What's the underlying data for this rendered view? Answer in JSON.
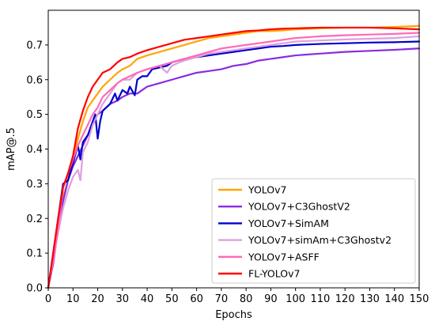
{
  "chart_data": {
    "type": "line",
    "title": "",
    "xlabel": "Epochs",
    "ylabel": "mAP@.5",
    "xlim": [
      0,
      150
    ],
    "ylim": [
      0,
      0.8
    ],
    "xticks": [
      0,
      10,
      20,
      30,
      40,
      50,
      60,
      70,
      80,
      90,
      100,
      110,
      120,
      130,
      140,
      150
    ],
    "yticks": [
      0.0,
      0.1,
      0.2,
      0.3,
      0.4,
      0.5,
      0.6,
      0.7
    ],
    "ytick_labels": [
      "0.0",
      "0.1",
      "0.2",
      "0.3",
      "0.4",
      "0.5",
      "0.6",
      "0.7"
    ],
    "grid": false,
    "legend_position": "lower-right",
    "series": [
      {
        "name": "YOLOv7",
        "color": "#FFA500",
        "x": [
          0,
          2,
          4,
          6,
          8,
          10,
          12,
          14,
          16,
          18,
          20,
          22,
          25,
          28,
          30,
          33,
          36,
          40,
          45,
          50,
          55,
          60,
          65,
          70,
          75,
          80,
          85,
          90,
          95,
          100,
          110,
          120,
          130,
          140,
          150
        ],
        "y": [
          0.0,
          0.09,
          0.18,
          0.26,
          0.31,
          0.37,
          0.43,
          0.48,
          0.52,
          0.54,
          0.56,
          0.58,
          0.6,
          0.62,
          0.63,
          0.64,
          0.66,
          0.67,
          0.68,
          0.69,
          0.7,
          0.71,
          0.72,
          0.725,
          0.73,
          0.735,
          0.74,
          0.74,
          0.742,
          0.745,
          0.748,
          0.75,
          0.75,
          0.752,
          0.755
        ]
      },
      {
        "name": "YOLOv7+C3GhostV2",
        "color": "#8A2BE2",
        "x": [
          0,
          2,
          4,
          6,
          8,
          10,
          12,
          14,
          16,
          18,
          20,
          22,
          25,
          28,
          30,
          33,
          36,
          40,
          45,
          50,
          55,
          60,
          65,
          70,
          75,
          80,
          85,
          90,
          95,
          100,
          110,
          120,
          130,
          140,
          150
        ],
        "y": [
          0.0,
          0.07,
          0.17,
          0.25,
          0.31,
          0.35,
          0.38,
          0.41,
          0.44,
          0.47,
          0.5,
          0.51,
          0.53,
          0.54,
          0.55,
          0.56,
          0.56,
          0.58,
          0.59,
          0.6,
          0.61,
          0.62,
          0.625,
          0.63,
          0.64,
          0.645,
          0.655,
          0.66,
          0.665,
          0.67,
          0.675,
          0.68,
          0.683,
          0.686,
          0.69
        ]
      },
      {
        "name": "YOLOv7+SimAM",
        "color": "#0000CD",
        "x": [
          0,
          2,
          4,
          6,
          8,
          10,
          12,
          13,
          14,
          16,
          18,
          19,
          20,
          21,
          22,
          25,
          27,
          28,
          30,
          32,
          33,
          35,
          36,
          38,
          40,
          42,
          45,
          48,
          50,
          55,
          60,
          65,
          70,
          75,
          80,
          85,
          90,
          95,
          100,
          110,
          120,
          130,
          140,
          150
        ],
        "y": [
          0.0,
          0.1,
          0.2,
          0.3,
          0.31,
          0.36,
          0.41,
          0.37,
          0.42,
          0.44,
          0.48,
          0.5,
          0.43,
          0.48,
          0.51,
          0.53,
          0.56,
          0.54,
          0.57,
          0.56,
          0.58,
          0.555,
          0.6,
          0.61,
          0.61,
          0.63,
          0.635,
          0.64,
          0.65,
          0.66,
          0.665,
          0.67,
          0.675,
          0.68,
          0.685,
          0.69,
          0.695,
          0.697,
          0.7,
          0.703,
          0.705,
          0.707,
          0.708,
          0.71
        ]
      },
      {
        "name": "YOLOv7+simAm+C3Ghostv2",
        "color": "#DDA0DD",
        "x": [
          0,
          2,
          4,
          6,
          8,
          10,
          12,
          13,
          14,
          16,
          18,
          20,
          22,
          25,
          28,
          30,
          33,
          36,
          40,
          45,
          48,
          50,
          53,
          55,
          60,
          65,
          70,
          75,
          80,
          85,
          90,
          95,
          100,
          110,
          120,
          130,
          140,
          150
        ],
        "y": [
          0.0,
          0.08,
          0.16,
          0.23,
          0.28,
          0.32,
          0.34,
          0.31,
          0.39,
          0.42,
          0.47,
          0.5,
          0.53,
          0.56,
          0.59,
          0.6,
          0.6,
          0.62,
          0.63,
          0.64,
          0.62,
          0.64,
          0.65,
          0.655,
          0.665,
          0.675,
          0.68,
          0.685,
          0.69,
          0.695,
          0.7,
          0.705,
          0.71,
          0.713,
          0.716,
          0.718,
          0.72,
          0.725
        ]
      },
      {
        "name": "YOLOv7+ASFF",
        "color": "#FF69B4",
        "x": [
          0,
          2,
          4,
          6,
          8,
          10,
          12,
          14,
          16,
          18,
          20,
          22,
          25,
          28,
          30,
          33,
          36,
          40,
          45,
          50,
          55,
          60,
          65,
          70,
          75,
          80,
          85,
          90,
          95,
          100,
          110,
          120,
          130,
          140,
          150
        ],
        "y": [
          0.0,
          0.08,
          0.17,
          0.29,
          0.33,
          0.37,
          0.41,
          0.44,
          0.47,
          0.5,
          0.52,
          0.55,
          0.57,
          0.59,
          0.6,
          0.61,
          0.62,
          0.63,
          0.64,
          0.65,
          0.66,
          0.67,
          0.68,
          0.69,
          0.695,
          0.7,
          0.705,
          0.71,
          0.715,
          0.72,
          0.725,
          0.728,
          0.73,
          0.732,
          0.735
        ]
      },
      {
        "name": "FL-YOLOv7",
        "color": "#FF0000",
        "x": [
          0,
          2,
          4,
          6,
          8,
          10,
          12,
          14,
          16,
          18,
          20,
          22,
          25,
          28,
          30,
          33,
          36,
          40,
          45,
          50,
          55,
          60,
          65,
          70,
          75,
          80,
          85,
          90,
          95,
          100,
          110,
          120,
          130,
          140,
          150
        ],
        "y": [
          0.0,
          0.1,
          0.2,
          0.29,
          0.33,
          0.38,
          0.46,
          0.51,
          0.55,
          0.58,
          0.6,
          0.62,
          0.63,
          0.65,
          0.66,
          0.665,
          0.675,
          0.685,
          0.695,
          0.705,
          0.715,
          0.72,
          0.725,
          0.73,
          0.735,
          0.74,
          0.742,
          0.745,
          0.747,
          0.748,
          0.75,
          0.75,
          0.75,
          0.748,
          0.745
        ]
      }
    ]
  }
}
